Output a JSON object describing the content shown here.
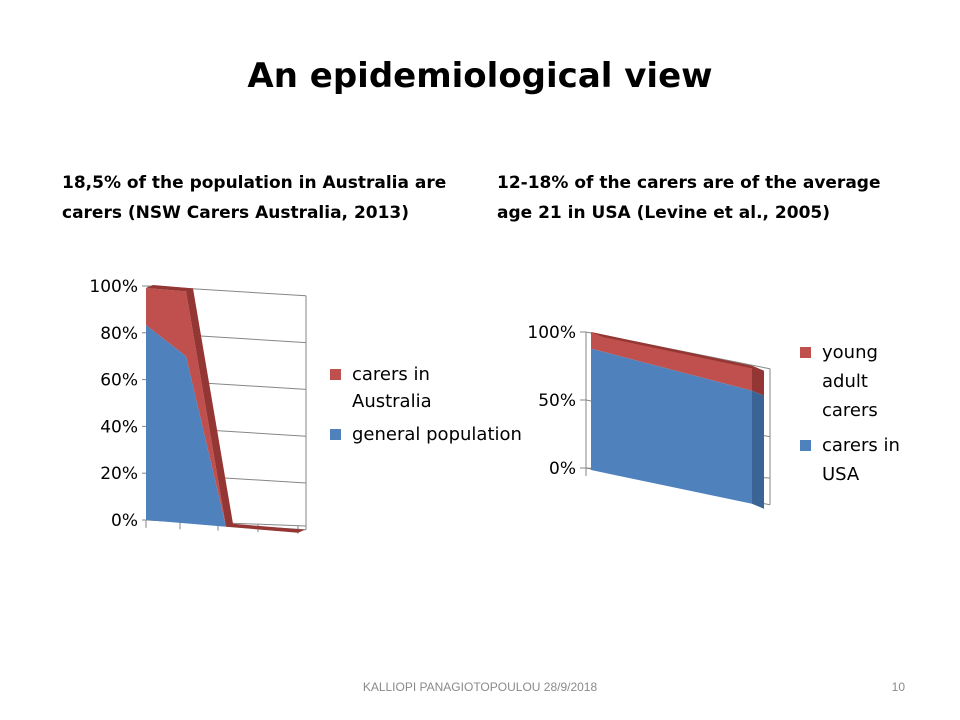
{
  "slide": {
    "title": "An epidemiological view",
    "caption_left": "18,5% of the population in Australia are carers (NSW Carers Australia, 2013)",
    "caption_right": "12-18% of the carers are of the average age 21 in USA (Levine et al., 2005)",
    "footer": "KALLIOPI PANAGIOTOPOULOU 28/9/2018",
    "page_number": "10"
  },
  "colors": {
    "blue": "#4f81bd",
    "blue_dark": "#3a6496",
    "red": "#c0504d",
    "red_dark": "#943634",
    "grid": "#868686"
  },
  "chart_data": [
    {
      "type": "area",
      "stacking": "percent",
      "view": "3d",
      "title": "",
      "xlabel": "",
      "ylabel": "",
      "ylim": [
        0,
        100
      ],
      "yticks": [
        "0%",
        "20%",
        "40%",
        "60%",
        "80%",
        "100%"
      ],
      "categories": [
        "",
        "",
        "",
        ""
      ],
      "series": [
        {
          "name": "general population",
          "values": [
            84,
            72,
            0,
            0
          ]
        },
        {
          "name": "carers in Australia",
          "values": [
            16,
            28,
            0,
            0
          ]
        }
      ],
      "legend_position": "right",
      "grid": true
    },
    {
      "type": "area",
      "stacking": "percent",
      "view": "3d",
      "title": "",
      "xlabel": "",
      "ylabel": "",
      "ylim": [
        0,
        100
      ],
      "yticks": [
        "0%",
        "50%",
        "100%"
      ],
      "categories": [
        "",
        ""
      ],
      "series": [
        {
          "name": "carers in USA",
          "values": [
            88,
            82
          ]
        },
        {
          "name": "young adult carers",
          "values": [
            12,
            18
          ]
        }
      ],
      "legend_position": "right",
      "grid": true
    }
  ]
}
